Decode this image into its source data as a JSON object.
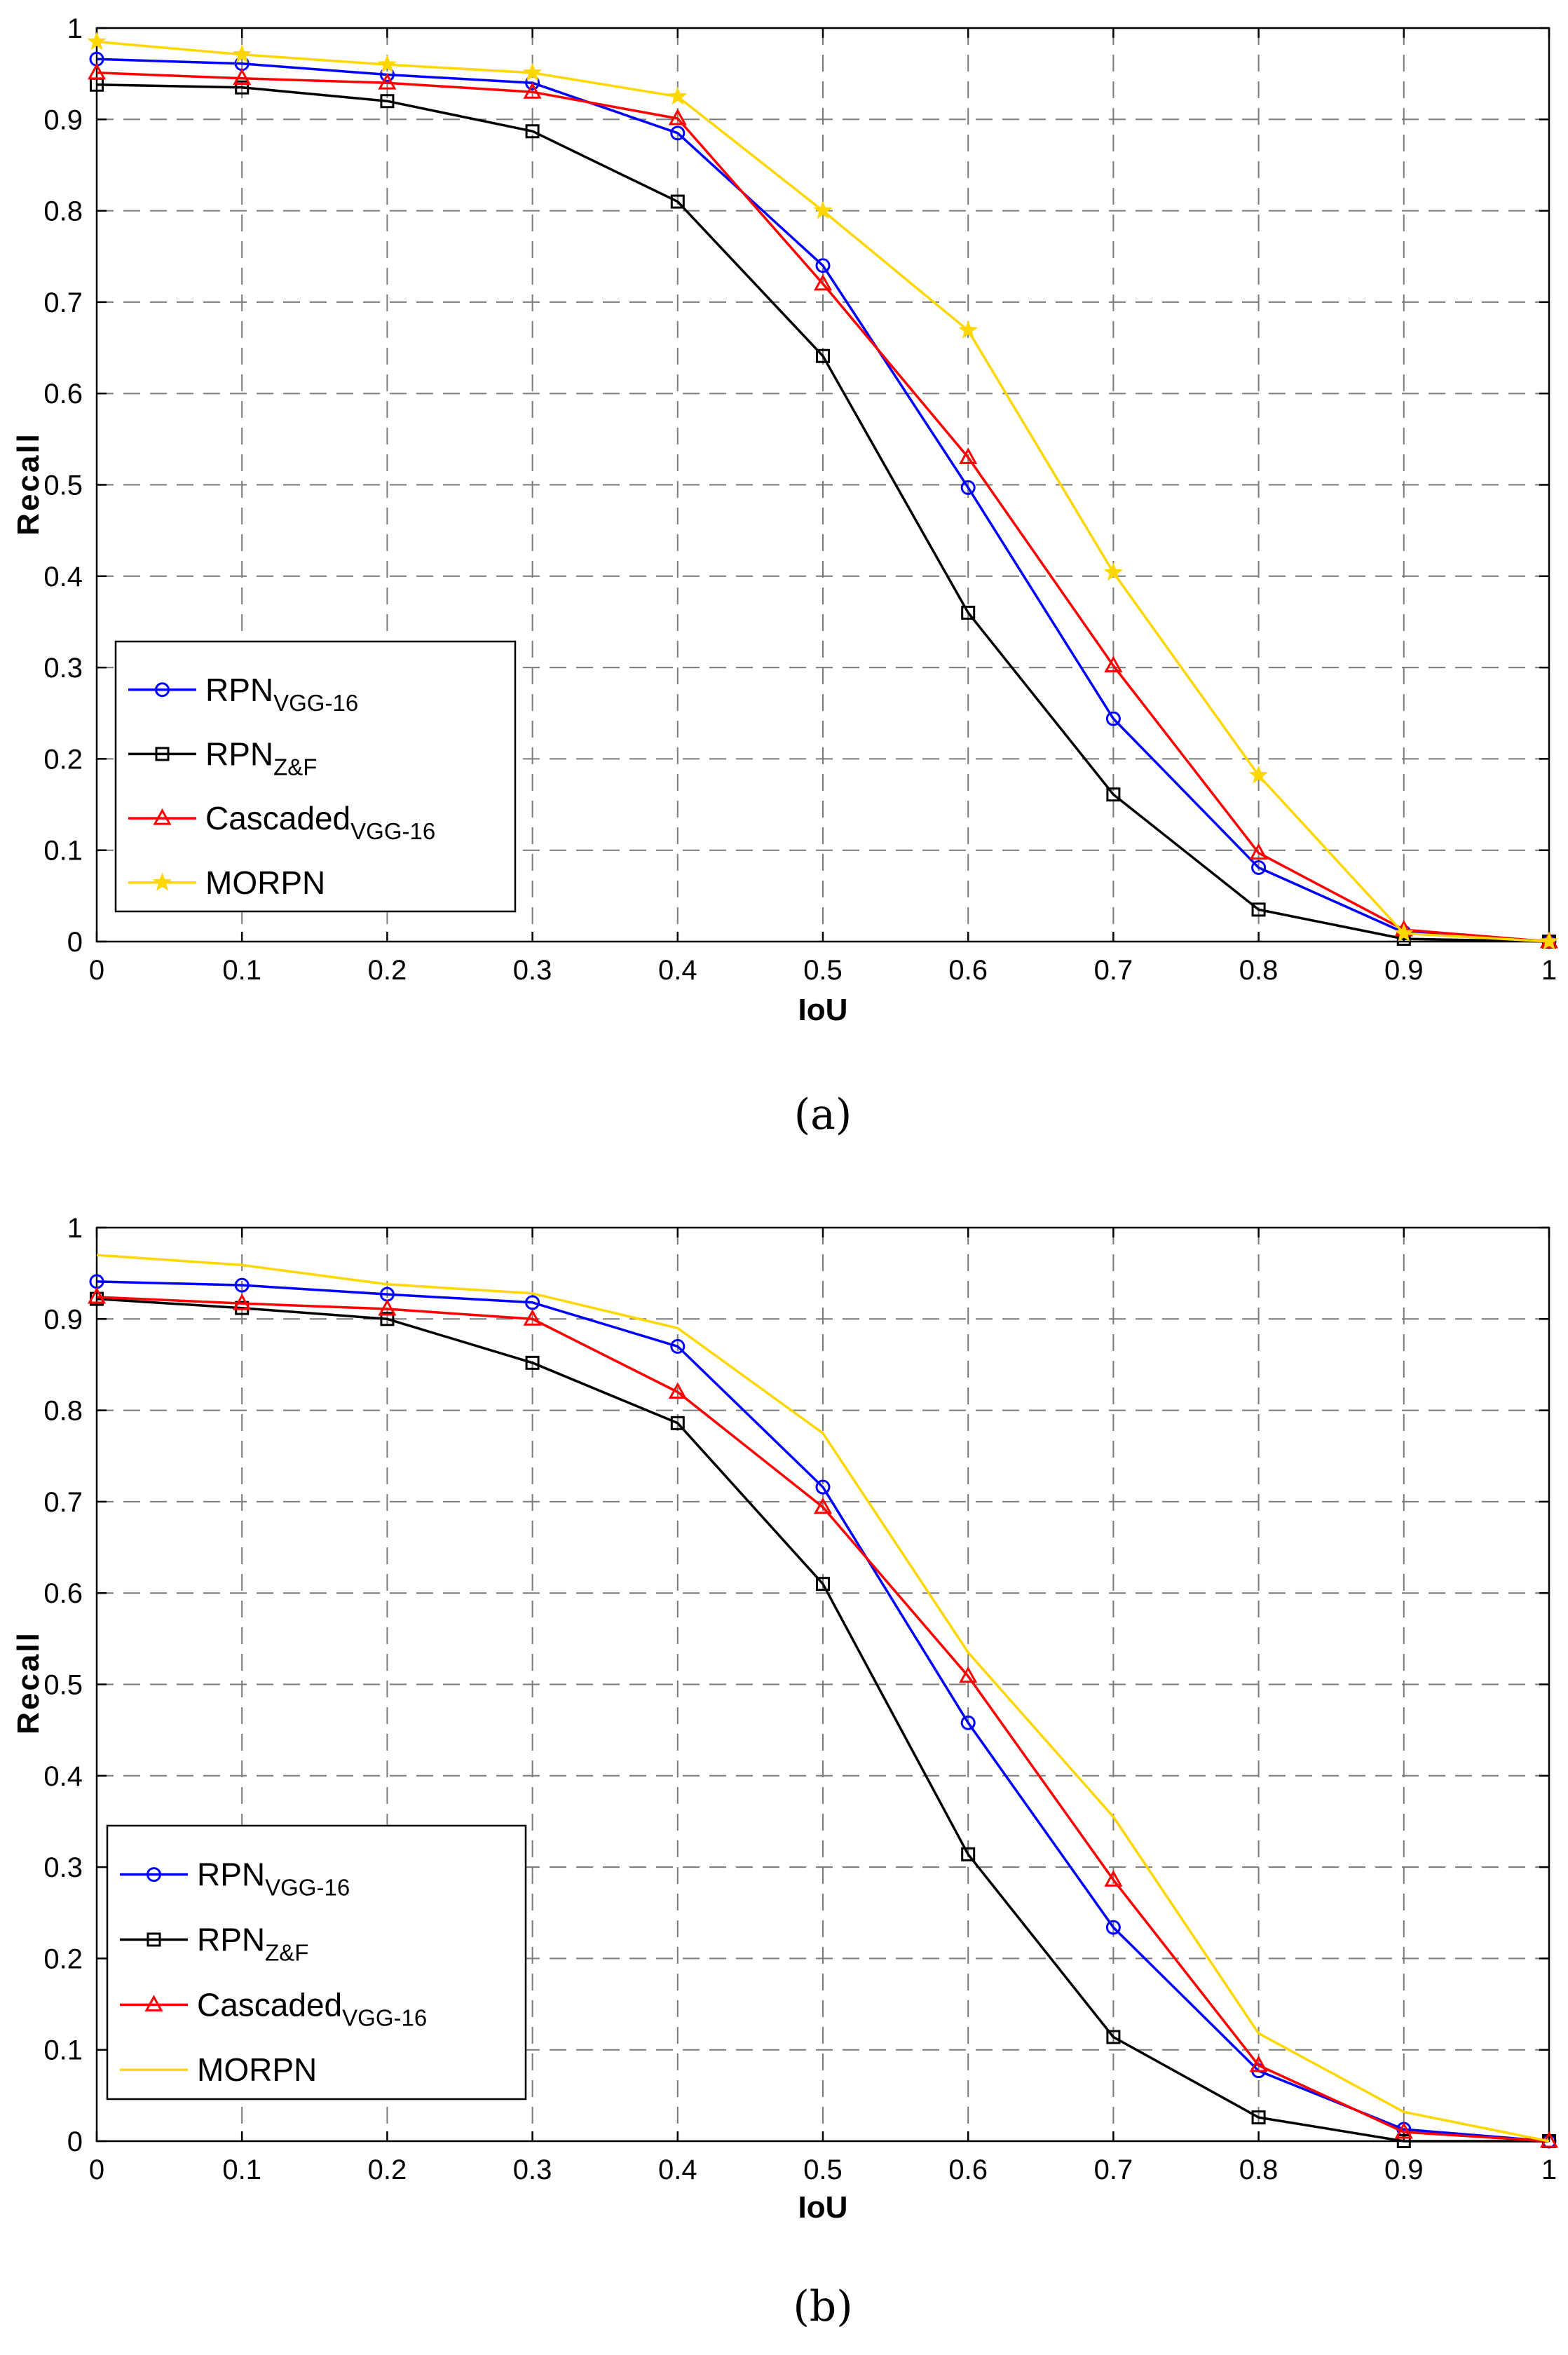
{
  "colors": {
    "RPN_VGG16": "#0000ff",
    "RPN_ZF": "#000000",
    "Cascaded": "#ff0000",
    "MORPN": "#ffd700"
  },
  "chart_data": [
    {
      "id": "a",
      "type": "line",
      "caption": "(a)",
      "xlabel": "IoU",
      "ylabel": "Recall",
      "xlim": [
        0,
        1
      ],
      "ylim": [
        0,
        1
      ],
      "x_ticks": [
        "0",
        "0.1",
        "0.2",
        "0.3",
        "0.4",
        "0.5",
        "0.6",
        "0.7",
        "0.8",
        "0.9",
        "1"
      ],
      "y_ticks": [
        "0",
        "0.1",
        "0.2",
        "0.3",
        "0.4",
        "0.5",
        "0.6",
        "0.7",
        "0.8",
        "0.9",
        "1"
      ],
      "grid": true,
      "legend_position": "bottom-left",
      "x": [
        0,
        0.1,
        0.2,
        0.3,
        0.4,
        0.5,
        0.6,
        0.7,
        0.8,
        0.9,
        1.0
      ],
      "series": [
        {
          "name": "RPN",
          "sub": "VGG-16",
          "key": "RPN_VGG16",
          "marker": "circle",
          "values": [
            0.966,
            0.961,
            0.949,
            0.94,
            0.885,
            0.74,
            0.497,
            0.244,
            0.081,
            0.01,
            0.0
          ]
        },
        {
          "name": "RPN",
          "sub": "Z&F",
          "key": "RPN_ZF",
          "marker": "square",
          "values": [
            0.938,
            0.935,
            0.92,
            0.887,
            0.81,
            0.641,
            0.36,
            0.161,
            0.035,
            0.003,
            0.0
          ]
        },
        {
          "name": "Cascaded",
          "sub": "VGG-16",
          "key": "Cascaded",
          "marker": "triangle",
          "values": [
            0.951,
            0.945,
            0.94,
            0.93,
            0.901,
            0.72,
            0.53,
            0.302,
            0.097,
            0.013,
            0.0
          ]
        },
        {
          "name": "MORPN",
          "sub": "",
          "key": "MORPN",
          "marker": "star",
          "values": [
            0.985,
            0.971,
            0.96,
            0.951,
            0.925,
            0.8,
            0.669,
            0.404,
            0.182,
            0.009,
            0.0
          ]
        }
      ]
    },
    {
      "id": "b",
      "type": "line",
      "caption": "(b)",
      "xlabel": "IoU",
      "ylabel": "Recall",
      "xlim": [
        0,
        1
      ],
      "ylim": [
        0,
        1
      ],
      "x_ticks": [
        "0",
        "0.1",
        "0.2",
        "0.3",
        "0.4",
        "0.5",
        "0.6",
        "0.7",
        "0.8",
        "0.9",
        "1"
      ],
      "y_ticks": [
        "0",
        "0.1",
        "0.2",
        "0.3",
        "0.4",
        "0.5",
        "0.6",
        "0.7",
        "0.8",
        "0.9",
        "1"
      ],
      "grid": true,
      "legend_position": "bottom-left",
      "x": [
        0,
        0.1,
        0.2,
        0.3,
        0.4,
        0.5,
        0.6,
        0.7,
        0.8,
        0.9,
        1.0
      ],
      "series": [
        {
          "name": "RPN",
          "sub": "VGG-16",
          "key": "RPN_VGG16",
          "marker": "circle",
          "values": [
            0.941,
            0.937,
            0.927,
            0.918,
            0.87,
            0.716,
            0.458,
            0.234,
            0.077,
            0.013,
            0.0
          ]
        },
        {
          "name": "RPN",
          "sub": "Z&F",
          "key": "RPN_ZF",
          "marker": "square",
          "values": [
            0.922,
            0.912,
            0.9,
            0.852,
            0.786,
            0.61,
            0.314,
            0.114,
            0.026,
            0.0,
            0.0
          ]
        },
        {
          "name": "Cascaded",
          "sub": "VGG-16",
          "key": "Cascaded",
          "marker": "triangle",
          "values": [
            0.924,
            0.917,
            0.911,
            0.9,
            0.82,
            0.694,
            0.509,
            0.286,
            0.083,
            0.01,
            0.0
          ]
        },
        {
          "name": "MORPN",
          "sub": "",
          "key": "MORPN",
          "marker": "none",
          "values": [
            0.97,
            0.959,
            0.938,
            0.928,
            0.89,
            0.775,
            0.535,
            0.355,
            0.118,
            0.032,
            0.0
          ]
        }
      ]
    }
  ]
}
